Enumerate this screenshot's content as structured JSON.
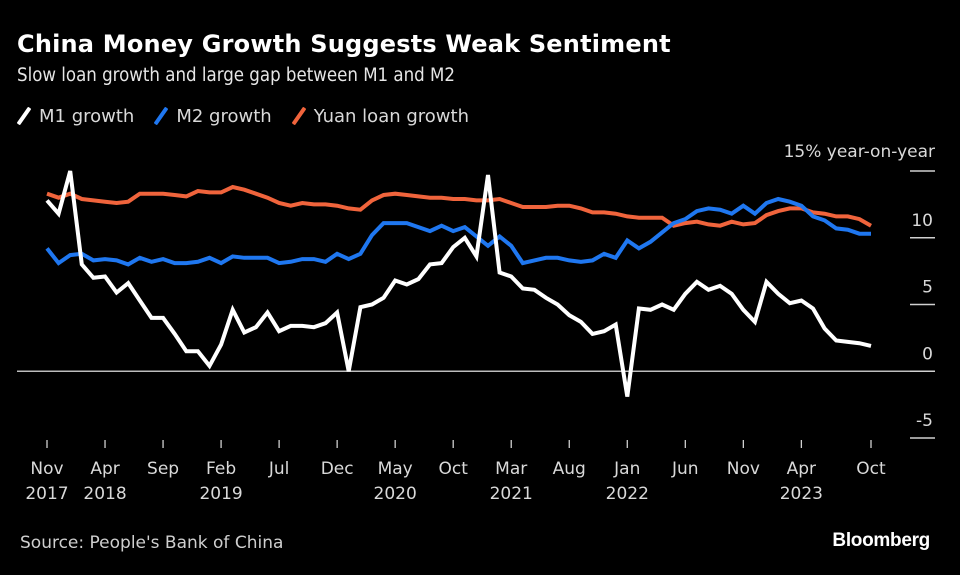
{
  "header": {
    "title": "China Money Growth Suggests Weak Sentiment",
    "subtitle": "Slow loan growth and large gap between M1 and M2"
  },
  "legend": [
    {
      "label": "M1 growth",
      "color": "#ffffff"
    },
    {
      "label": "M2 growth",
      "color": "#1f77f0"
    },
    {
      "label": "Yuan loan growth",
      "color": "#f0643c"
    }
  ],
  "footer": {
    "source": "Source: People's Bank of China",
    "brand": "Bloomberg"
  },
  "chart_data": {
    "type": "line",
    "title": "China Money Growth Suggests Weak Sentiment",
    "subtitle": "Slow loan growth and large gap between M1 and M2",
    "ylabel": "15% year-on-year",
    "y_unit_label": "15% year-on-year",
    "ylim": [
      -5,
      15
    ],
    "yticks": [
      15,
      10,
      5,
      0,
      -5
    ],
    "ytick_labels": [
      "",
      "10",
      "5",
      "0",
      "-5"
    ],
    "grid": false,
    "legend_position": "top-left",
    "x_start": "2017-11",
    "x_end": "2023-10",
    "frequency": "monthly",
    "xticks": [
      {
        "index": 0,
        "month": "Nov",
        "year": "2017"
      },
      {
        "index": 5,
        "month": "Apr",
        "year": "2018"
      },
      {
        "index": 10,
        "month": "Sep",
        "year": ""
      },
      {
        "index": 15,
        "month": "Feb",
        "year": "2019"
      },
      {
        "index": 20,
        "month": "Jul",
        "year": ""
      },
      {
        "index": 25,
        "month": "Dec",
        "year": ""
      },
      {
        "index": 30,
        "month": "May",
        "year": "2020"
      },
      {
        "index": 35,
        "month": "Oct",
        "year": ""
      },
      {
        "index": 40,
        "month": "Mar",
        "year": "2021"
      },
      {
        "index": 45,
        "month": "Aug",
        "year": ""
      },
      {
        "index": 50,
        "month": "Jan",
        "year": "2022"
      },
      {
        "index": 55,
        "month": "Jun",
        "year": ""
      },
      {
        "index": 60,
        "month": "Nov",
        "year": ""
      },
      {
        "index": 65,
        "month": "Apr",
        "year": "2023"
      },
      {
        "index": 71,
        "month": "Oct",
        "year": ""
      }
    ],
    "series": [
      {
        "name": "Yuan loan growth",
        "color": "#f0643c",
        "values": [
          13.3,
          13.0,
          13.3,
          12.9,
          12.8,
          12.7,
          12.6,
          12.7,
          13.3,
          13.3,
          13.3,
          13.2,
          13.1,
          13.5,
          13.4,
          13.4,
          13.8,
          13.6,
          13.3,
          13.0,
          12.6,
          12.4,
          12.6,
          12.5,
          12.5,
          12.4,
          12.2,
          12.1,
          12.8,
          13.2,
          13.3,
          13.2,
          13.1,
          13.0,
          13.0,
          12.9,
          12.9,
          12.8,
          12.8,
          12.9,
          12.6,
          12.3,
          12.3,
          12.3,
          12.4,
          12.4,
          12.2,
          11.9,
          11.9,
          11.8,
          11.6,
          11.5,
          11.5,
          11.5,
          10.9,
          11.1,
          11.2,
          11.0,
          10.9,
          11.2,
          11.0,
          11.1,
          11.7,
          12.0,
          12.2,
          12.2,
          11.9,
          11.8,
          11.6,
          11.6,
          11.4,
          10.9
        ]
      },
      {
        "name": "M2 growth",
        "color": "#1f77f0",
        "values": [
          9.2,
          8.1,
          8.7,
          8.8,
          8.3,
          8.4,
          8.3,
          8.0,
          8.5,
          8.2,
          8.4,
          8.1,
          8.1,
          8.2,
          8.5,
          8.1,
          8.6,
          8.5,
          8.5,
          8.5,
          8.1,
          8.2,
          8.4,
          8.4,
          8.2,
          8.8,
          8.4,
          8.8,
          10.2,
          11.1,
          11.1,
          11.1,
          10.8,
          10.5,
          10.9,
          10.5,
          10.8,
          10.1,
          9.4,
          10.1,
          9.4,
          8.1,
          8.3,
          8.5,
          8.5,
          8.3,
          8.2,
          8.3,
          8.8,
          8.5,
          9.8,
          9.2,
          9.7,
          10.4,
          11.1,
          11.4,
          12.0,
          12.2,
          12.1,
          11.8,
          12.4,
          11.8,
          12.6,
          12.9,
          12.7,
          12.4,
          11.6,
          11.3,
          10.7,
          10.6,
          10.3,
          10.3
        ]
      },
      {
        "name": "M1 growth",
        "color": "#ffffff",
        "values": [
          12.8,
          11.8,
          15.0,
          8.0,
          7.0,
          7.1,
          5.9,
          6.6,
          5.3,
          4.0,
          4.0,
          2.8,
          1.5,
          1.5,
          0.4,
          2.0,
          4.6,
          2.9,
          3.3,
          4.4,
          3.0,
          3.4,
          3.4,
          3.3,
          3.6,
          4.4,
          0.0,
          4.8,
          5.0,
          5.5,
          6.8,
          6.5,
          6.9,
          8.0,
          8.1,
          9.3,
          10.0,
          8.6,
          14.7,
          7.4,
          7.1,
          6.2,
          6.1,
          5.5,
          5.0,
          4.2,
          3.7,
          2.8,
          3.0,
          3.5,
          -1.9,
          4.7,
          4.6,
          5.0,
          4.6,
          5.8,
          6.7,
          6.1,
          6.4,
          5.8,
          4.6,
          3.7,
          6.7,
          5.8,
          5.1,
          5.3,
          4.7,
          3.2,
          2.3,
          2.2,
          2.1,
          1.9
        ]
      }
    ]
  }
}
